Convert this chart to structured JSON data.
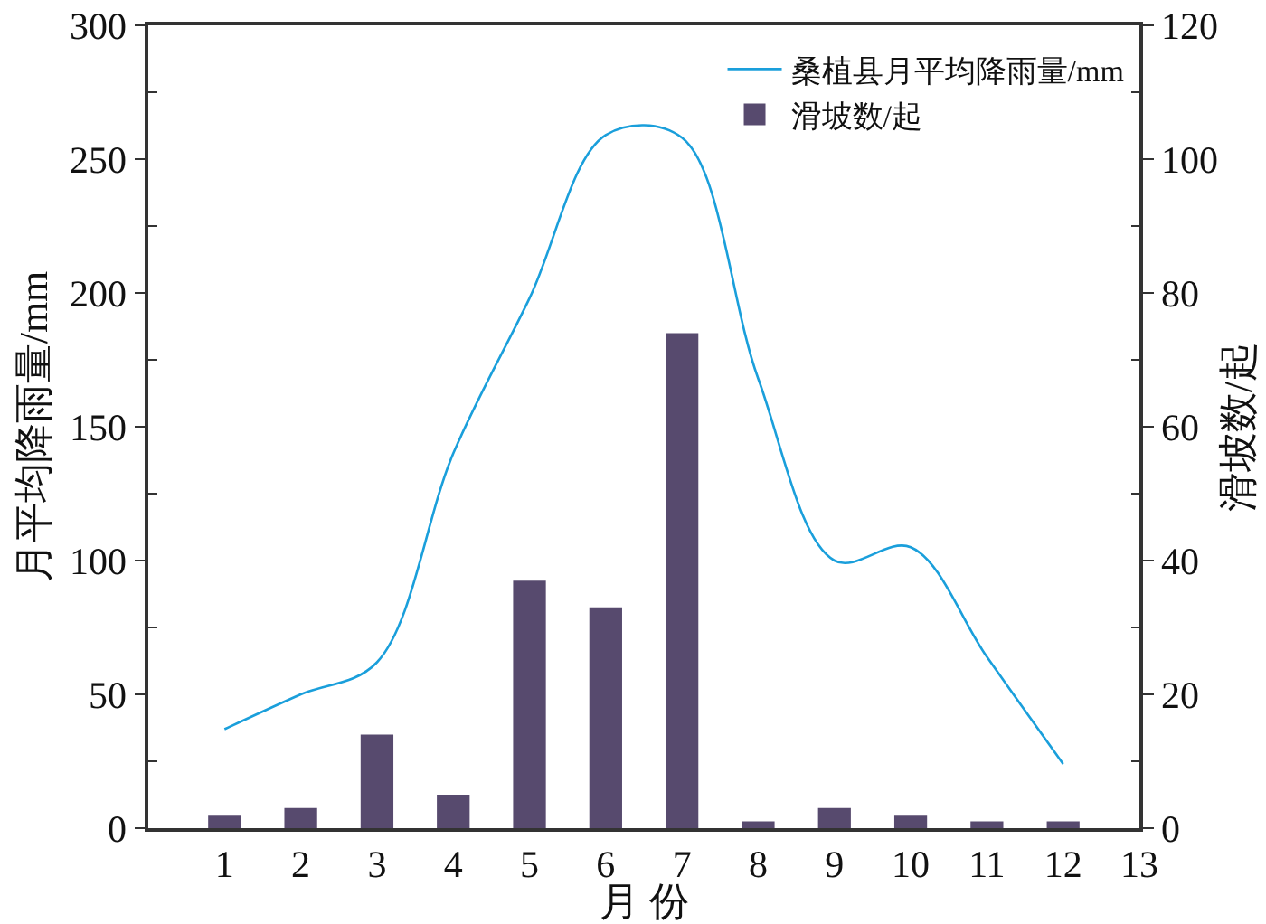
{
  "chart_data": {
    "type": "bar",
    "x": [
      1,
      2,
      3,
      4,
      5,
      6,
      7,
      8,
      9,
      10,
      11,
      12
    ],
    "series": [
      {
        "name": "桑植县月平均降雨量/mm",
        "type": "line",
        "color": "#1a9fdb",
        "axis": "y",
        "values": [
          37,
          50,
          62,
          140,
          198,
          259,
          258,
          168,
          100,
          105,
          64,
          24
        ]
      },
      {
        "name": "滑坡数/起",
        "color": "#574a6e",
        "axis": "y2",
        "values": [
          2,
          3,
          14,
          5,
          37,
          33,
          74,
          1,
          3,
          2,
          1,
          1
        ]
      }
    ],
    "xlabel": "月 份",
    "ylabel": "月平均降雨量/mm",
    "y2label": "滑坡数/起",
    "xlim": [
      0,
      13
    ],
    "xticks": [
      1,
      2,
      3,
      4,
      5,
      6,
      7,
      8,
      9,
      10,
      11,
      12,
      13
    ],
    "ylim": [
      0,
      300
    ],
    "yticks": [
      0,
      {
        "value": 25,
        "label": null
      },
      50,
      {
        "value": 75,
        "label": null
      },
      100,
      {
        "value": 125,
        "label": null
      },
      150,
      {
        "value": 175,
        "label": null
      },
      200,
      {
        "value": 225,
        "label": null
      },
      250,
      {
        "value": 275,
        "label": null
      },
      300
    ],
    "y2lim": [
      0,
      120
    ],
    "y2ticks": [
      0,
      {
        "value": 10,
        "label": null
      },
      20,
      {
        "value": 30,
        "label": null
      },
      40,
      {
        "value": 50,
        "label": null
      },
      60,
      {
        "value": 70,
        "label": null
      },
      80,
      {
        "value": 90,
        "label": null
      },
      100,
      {
        "value": 110,
        "label": null
      },
      120
    ],
    "legend": "top right"
  }
}
